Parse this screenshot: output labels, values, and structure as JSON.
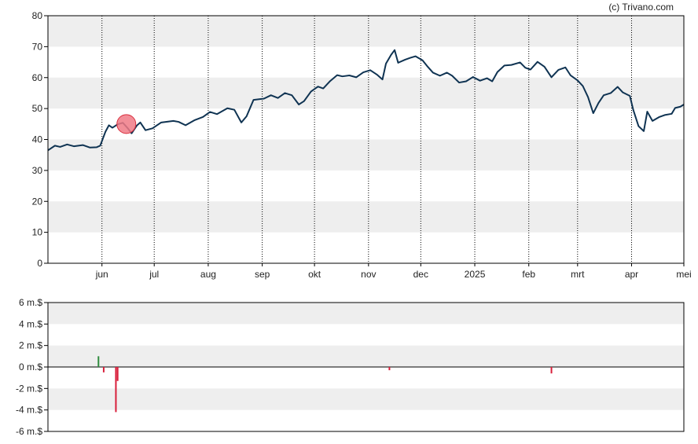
{
  "credit": "(c) Trivano.com",
  "colors": {
    "band": "#eeeeee",
    "price_line": "#0f3352",
    "marker_fill": "#f07a86",
    "marker_stroke": "#d9303f",
    "buy": "#2e8b3e",
    "sell": "#d81e3a",
    "axis": "#000000"
  },
  "chart_data": [
    {
      "type": "line",
      "name": "price",
      "ylim": [
        0,
        80
      ],
      "y_ticks": [
        "0",
        "10",
        "20",
        "30",
        "40",
        "50",
        "60",
        "70",
        "80"
      ],
      "y_tick_values": [
        0,
        10,
        20,
        30,
        40,
        50,
        60,
        70,
        80
      ],
      "xlim": [
        "2024-05-01",
        "2025-05-01"
      ],
      "x_ticks": [
        {
          "label": "jun",
          "date": "2024-06-01"
        },
        {
          "label": "jul",
          "date": "2024-07-01"
        },
        {
          "label": "aug",
          "date": "2024-08-01"
        },
        {
          "label": "sep",
          "date": "2024-09-01"
        },
        {
          "label": "okt",
          "date": "2024-10-01"
        },
        {
          "label": "nov",
          "date": "2024-11-01"
        },
        {
          "label": "dec",
          "date": "2024-12-01"
        },
        {
          "label": "2025",
          "date": "2025-01-01"
        },
        {
          "label": "feb",
          "date": "2025-02-01"
        },
        {
          "label": "mrt",
          "date": "2025-03-01"
        },
        {
          "label": "apr",
          "date": "2025-04-01"
        },
        {
          "label": "mei",
          "date": "2025-05-01"
        }
      ],
      "grid": "dotted vertical lines at month ticks, alternating horizontal bands",
      "series": [
        {
          "points": [
            [
              "2024-05-01",
              36.5
            ],
            [
              "2024-05-05",
              38.0
            ],
            [
              "2024-05-08",
              37.6
            ],
            [
              "2024-05-12",
              38.4
            ],
            [
              "2024-05-16",
              37.8
            ],
            [
              "2024-05-21",
              38.2
            ],
            [
              "2024-05-25",
              37.4
            ],
            [
              "2024-05-29",
              37.5
            ],
            [
              "2024-05-31",
              38.0
            ],
            [
              "2024-06-03",
              42.5
            ],
            [
              "2024-06-05",
              44.6
            ],
            [
              "2024-06-07",
              43.8
            ],
            [
              "2024-06-10",
              44.9
            ],
            [
              "2024-06-13",
              45.4
            ],
            [
              "2024-06-16",
              43.5
            ],
            [
              "2024-06-18",
              42.0
            ],
            [
              "2024-06-21",
              44.5
            ],
            [
              "2024-06-23",
              45.5
            ],
            [
              "2024-06-26",
              43.0
            ],
            [
              "2024-06-30",
              43.6
            ],
            [
              "2024-07-05",
              45.5
            ],
            [
              "2024-07-12",
              46.0
            ],
            [
              "2024-07-15",
              45.7
            ],
            [
              "2024-07-19",
              44.6
            ],
            [
              "2024-07-24",
              46.2
            ],
            [
              "2024-07-29",
              47.3
            ],
            [
              "2024-08-02",
              48.9
            ],
            [
              "2024-08-06",
              48.2
            ],
            [
              "2024-08-12",
              50.1
            ],
            [
              "2024-08-16",
              49.6
            ],
            [
              "2024-08-20",
              45.5
            ],
            [
              "2024-08-23",
              47.5
            ],
            [
              "2024-08-27",
              52.8
            ],
            [
              "2024-09-02",
              53.2
            ],
            [
              "2024-09-06",
              54.3
            ],
            [
              "2024-09-10",
              53.4
            ],
            [
              "2024-09-14",
              55.0
            ],
            [
              "2024-09-18",
              54.3
            ],
            [
              "2024-09-22",
              51.3
            ],
            [
              "2024-09-25",
              52.4
            ],
            [
              "2024-09-29",
              55.5
            ],
            [
              "2024-10-03",
              57.1
            ],
            [
              "2024-10-06",
              56.5
            ],
            [
              "2024-10-10",
              58.9
            ],
            [
              "2024-10-14",
              60.8
            ],
            [
              "2024-10-17",
              60.4
            ],
            [
              "2024-10-21",
              60.7
            ],
            [
              "2024-10-25",
              60.1
            ],
            [
              "2024-10-29",
              61.7
            ],
            [
              "2024-11-02",
              62.4
            ],
            [
              "2024-11-06",
              60.9
            ],
            [
              "2024-11-09",
              59.4
            ],
            [
              "2024-11-11",
              64.5
            ],
            [
              "2024-11-14",
              67.4
            ],
            [
              "2024-11-16",
              68.9
            ],
            [
              "2024-11-18",
              64.8
            ],
            [
              "2024-11-22",
              65.8
            ],
            [
              "2024-11-25",
              66.4
            ],
            [
              "2024-11-28",
              66.9
            ],
            [
              "2024-12-02",
              65.6
            ],
            [
              "2024-12-05",
              63.5
            ],
            [
              "2024-12-08",
              61.6
            ],
            [
              "2024-12-12",
              60.6
            ],
            [
              "2024-12-16",
              61.6
            ],
            [
              "2024-12-19",
              60.6
            ],
            [
              "2024-12-23",
              58.4
            ],
            [
              "2024-12-27",
              58.8
            ],
            [
              "2024-12-31",
              60.2
            ],
            [
              "2025-01-04",
              59.0
            ],
            [
              "2025-01-08",
              59.8
            ],
            [
              "2025-01-11",
              58.8
            ],
            [
              "2025-01-14",
              61.8
            ],
            [
              "2025-01-18",
              63.9
            ],
            [
              "2025-01-22",
              64.1
            ],
            [
              "2025-01-27",
              64.9
            ],
            [
              "2025-01-30",
              63.2
            ],
            [
              "2025-02-02",
              62.6
            ],
            [
              "2025-02-06",
              65.1
            ],
            [
              "2025-02-10",
              63.5
            ],
            [
              "2025-02-14",
              60.1
            ],
            [
              "2025-02-18",
              62.5
            ],
            [
              "2025-02-22",
              63.3
            ],
            [
              "2025-02-25",
              60.7
            ],
            [
              "2025-03-01",
              59.1
            ],
            [
              "2025-03-04",
              57.3
            ],
            [
              "2025-03-07",
              53.7
            ],
            [
              "2025-03-10",
              48.5
            ],
            [
              "2025-03-13",
              51.8
            ],
            [
              "2025-03-16",
              54.3
            ],
            [
              "2025-03-20",
              55.0
            ],
            [
              "2025-03-24",
              57.0
            ],
            [
              "2025-03-27",
              55.2
            ],
            [
              "2025-03-31",
              54.1
            ],
            [
              "2025-04-02",
              49.5
            ],
            [
              "2025-04-05",
              44.3
            ],
            [
              "2025-04-08",
              42.7
            ],
            [
              "2025-04-10",
              49.0
            ],
            [
              "2025-04-13",
              46.0
            ],
            [
              "2025-04-17",
              47.3
            ],
            [
              "2025-04-20",
              47.9
            ],
            [
              "2025-04-24",
              48.3
            ],
            [
              "2025-04-26",
              50.2
            ],
            [
              "2025-04-29",
              50.6
            ],
            [
              "2025-05-01",
              51.3
            ]
          ]
        }
      ],
      "annotations": [
        {
          "type": "marker",
          "date": "2024-06-15",
          "value": 45.0
        }
      ]
    },
    {
      "type": "bar",
      "name": "insider-trades",
      "ylim": [
        -6,
        6
      ],
      "y_ticks": [
        "-6 m.$",
        "-4 m.$",
        "-2 m.$",
        "0 m.$",
        "2 m.$",
        "4 m.$",
        "6 m.$"
      ],
      "y_tick_values": [
        -6,
        -4,
        -2,
        0,
        2,
        4,
        6
      ],
      "xlim": [
        "2024-05-01",
        "2025-05-01"
      ],
      "bars": [
        {
          "date": "2024-05-30",
          "value": 1.0,
          "kind": "buy"
        },
        {
          "date": "2024-06-02",
          "value": -0.5,
          "kind": "sell"
        },
        {
          "date": "2024-06-09",
          "value": -4.2,
          "kind": "sell"
        },
        {
          "date": "2024-06-10",
          "value": -1.3,
          "kind": "sell"
        },
        {
          "date": "2024-11-13",
          "value": -0.3,
          "kind": "sell"
        },
        {
          "date": "2025-02-14",
          "value": -0.6,
          "kind": "sell"
        }
      ]
    }
  ]
}
